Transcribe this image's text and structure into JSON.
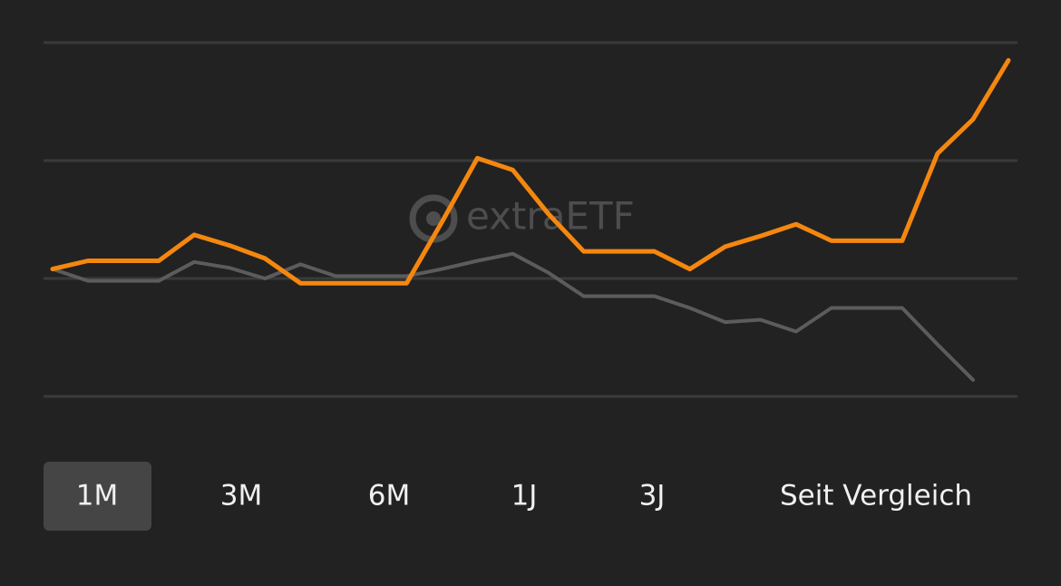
{
  "chart_data": {
    "type": "line",
    "categories": [
      null,
      null,
      null,
      null,
      null,
      null,
      null,
      null,
      null,
      null,
      null,
      null,
      null,
      null,
      null,
      null,
      null,
      null,
      null,
      null,
      null,
      null,
      null,
      null,
      null,
      null,
      null,
      null
    ],
    "series": [
      {
        "color": "#5c5c5c",
        "values": [
          1.08,
          0.98,
          0.98,
          0.98,
          1.14,
          1.09,
          1.0,
          1.12,
          1.02,
          1.02,
          1.02,
          1.08,
          1.15,
          1.21,
          1.05,
          0.85,
          0.85,
          0.85,
          0.75,
          0.63,
          0.65,
          0.55,
          0.75,
          0.75,
          0.75,
          0.44,
          0.14,
          null
        ]
      },
      {
        "color": "#f5870f",
        "values": [
          1.08,
          1.15,
          1.15,
          1.15,
          1.37,
          1.28,
          1.17,
          0.96,
          0.96,
          0.96,
          0.96,
          1.48,
          2.02,
          1.92,
          1.55,
          1.23,
          1.23,
          1.23,
          1.08,
          1.27,
          1.36,
          1.46,
          1.32,
          1.32,
          1.32,
          2.06,
          2.35,
          2.85
        ]
      }
    ],
    "ylim": [
      0,
      3
    ],
    "yticks": [
      0,
      1,
      2,
      3
    ],
    "grid": true,
    "watermark": "extraETF"
  },
  "buttons": [
    "1M",
    "3M",
    "6M",
    "1J",
    "3J",
    "Seit Vergleich"
  ],
  "selected": 0
}
